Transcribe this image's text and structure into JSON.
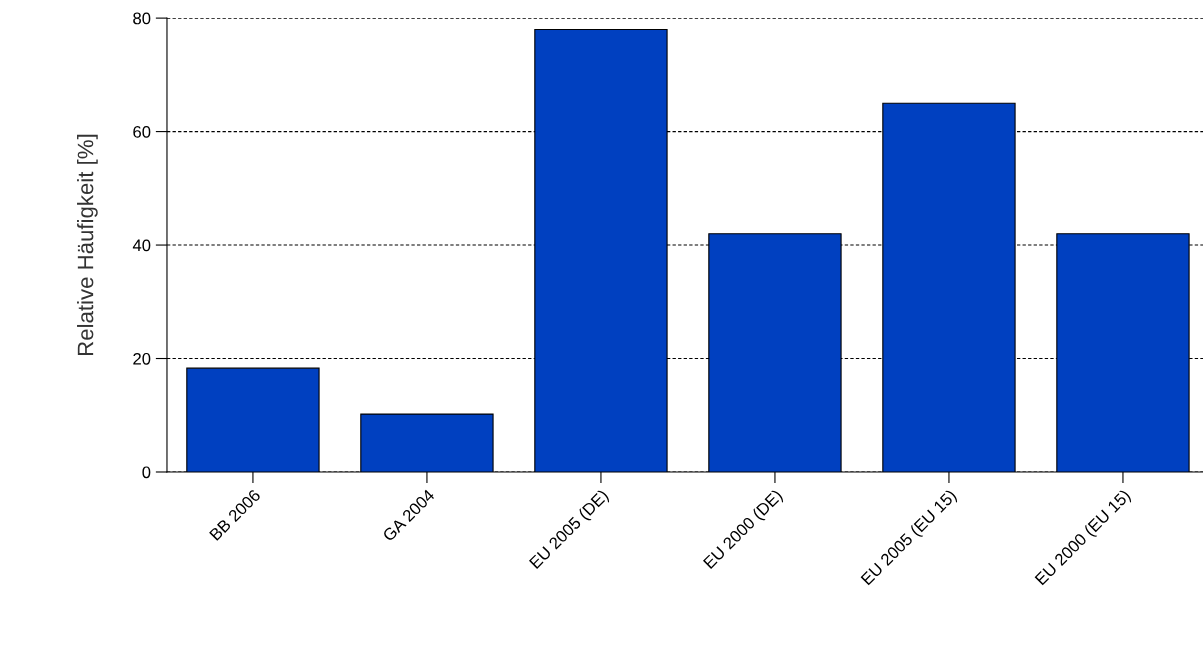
{
  "chart_data": {
    "type": "bar",
    "ylabel": "Relative Häufigkeit [%]",
    "categories": [
      "BB 2006",
      "GA 2004",
      "EU 2005 (DE)",
      "EU 2000 (DE)",
      "EU 2005 (EU 15)",
      "EU 2000 (EU 15)"
    ],
    "values": [
      18.3,
      10.2,
      78,
      42,
      65,
      42
    ],
    "color": "#0040c0",
    "ylim": [
      0,
      80
    ],
    "yticks": [
      0,
      20,
      40,
      60,
      80
    ],
    "grid": "y",
    "legend": false
  }
}
